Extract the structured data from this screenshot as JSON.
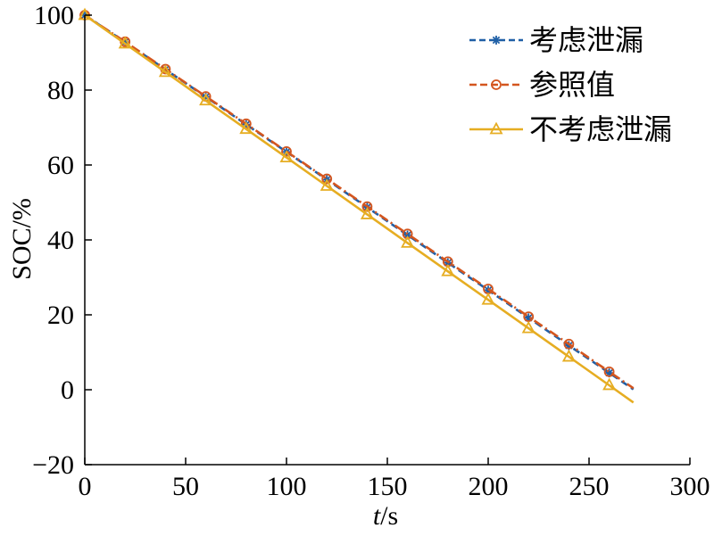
{
  "chart_data": {
    "type": "line",
    "title": "",
    "xlabel": {
      "symbol": "t",
      "unit": "/s"
    },
    "ylabel": "SOC/%",
    "xlim": [
      0,
      300
    ],
    "ylim": [
      -20,
      100
    ],
    "xticks": [
      0,
      50,
      100,
      150,
      200,
      250,
      300
    ],
    "xtick_labels": [
      "0",
      "50",
      "100",
      "150",
      "200",
      "250",
      "300"
    ],
    "yticks": [
      -20,
      0,
      20,
      40,
      60,
      80,
      100
    ],
    "ytick_labels": [
      "−20",
      "0",
      "20",
      "40",
      "60",
      "80",
      "100"
    ],
    "grid": false,
    "legend_position": "top-right",
    "x": [
      0,
      20,
      40,
      60,
      80,
      100,
      120,
      140,
      160,
      180,
      200,
      220,
      240,
      260,
      272
    ],
    "series": [
      {
        "name": "考虑泄漏",
        "color": "#1f5fa6",
        "line_style": "dashed",
        "marker": "asterisk",
        "values": [
          100,
          92.8,
          85.5,
          78.2,
          70.8,
          63.5,
          56.1,
          48.7,
          41.3,
          33.9,
          26.6,
          19.2,
          11.8,
          4.5,
          0.1
        ]
      },
      {
        "name": "参照值",
        "color": "#d4561f",
        "line_style": "dash-dot",
        "marker": "circle",
        "values": [
          100,
          92.9,
          85.6,
          78.3,
          71.0,
          63.6,
          56.3,
          48.9,
          41.6,
          34.2,
          26.9,
          19.5,
          12.2,
          4.8,
          0.4
        ]
      },
      {
        "name": "不考虑泄漏",
        "color": "#e6ad22",
        "line_style": "solid",
        "marker": "triangle",
        "values": [
          100,
          92.4,
          84.8,
          77.2,
          69.6,
          62.0,
          54.4,
          46.8,
          39.2,
          31.6,
          24.0,
          16.4,
          8.8,
          1.2,
          -3.4
        ]
      }
    ]
  }
}
